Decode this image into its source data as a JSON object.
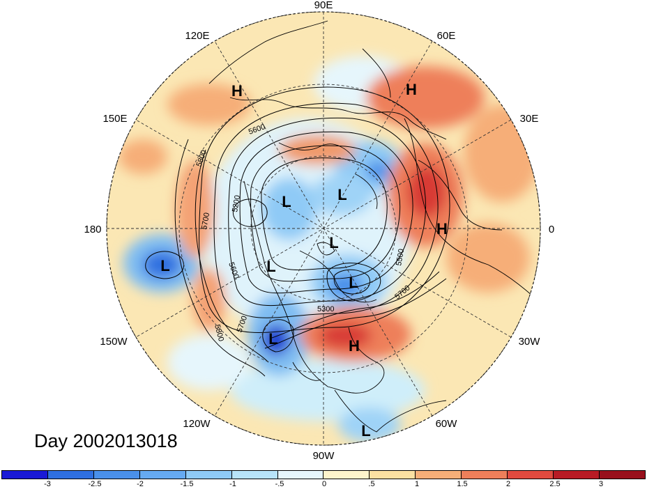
{
  "title": "Day 2002013018",
  "longitude_labels": [
    "90E",
    "60E",
    "30E",
    "0",
    "30W",
    "60W",
    "90W",
    "120W",
    "150W",
    "180",
    "150E",
    "120E"
  ],
  "contour_labels": [
    "5600",
    "5800",
    "5200",
    "5700",
    "5600",
    "5800",
    "5700",
    "5300",
    "5500",
    "5700"
  ],
  "centers": [
    {
      "type": "H",
      "label": "H"
    },
    {
      "type": "H",
      "label": "H"
    },
    {
      "type": "H",
      "label": "H"
    },
    {
      "type": "H",
      "label": "H"
    },
    {
      "type": "L",
      "label": "L"
    },
    {
      "type": "L",
      "label": "L"
    },
    {
      "type": "L",
      "label": "L"
    },
    {
      "type": "L",
      "label": "L"
    },
    {
      "type": "L",
      "label": "L"
    },
    {
      "type": "L",
      "label": "L"
    },
    {
      "type": "L",
      "label": "L"
    },
    {
      "type": "L",
      "label": "L"
    }
  ],
  "colorbar": {
    "tick_labels": [
      "-3",
      "-2.5",
      "-2",
      "-1.5",
      "-1",
      "-.5",
      "0",
      ".5",
      "1",
      "1.5",
      "2",
      "2.5",
      "3"
    ],
    "colors": [
      "#1a1ad6",
      "#2f6fe0",
      "#4a90ea",
      "#66aaf2",
      "#8fcaf6",
      "#b8e4f9",
      "#e6f6fc",
      "#fdf4cc",
      "#fbe0a2",
      "#f6ae78",
      "#ee7f5a",
      "#e04a3f",
      "#b81b25",
      "#98101c"
    ]
  }
}
